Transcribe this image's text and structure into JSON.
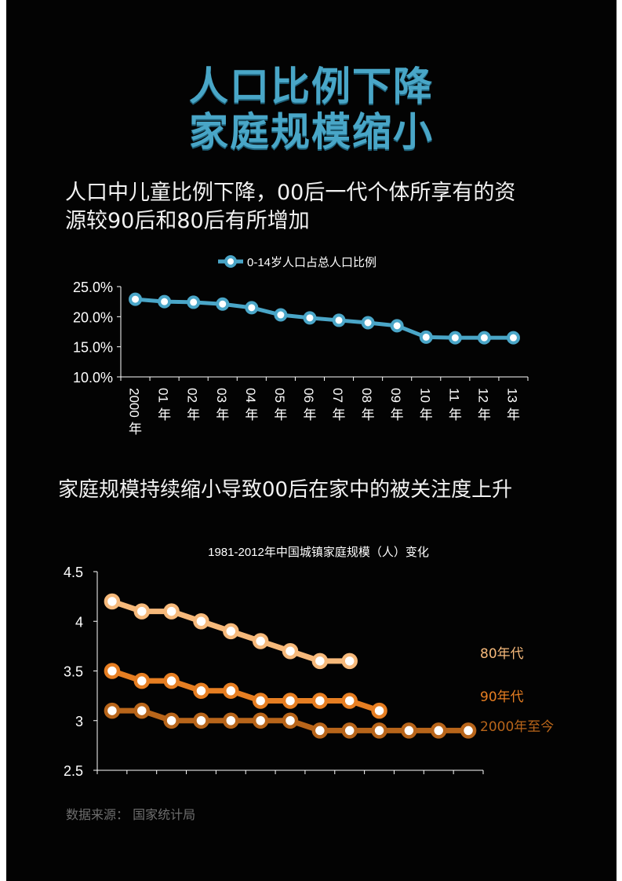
{
  "title": {
    "line1": "人口比例下降",
    "line2": "家庭规模缩小"
  },
  "section1": {
    "heading_line1": "人口中儿童比例下降，00后一代个体所享有的资",
    "heading_line2": "源较90后和80后有所增加"
  },
  "section2": {
    "heading": "家庭规模持续缩小导致00后在家中的被关注度上升"
  },
  "source": "数据来源：  国家统计局",
  "colors": {
    "title": "#49a6c7",
    "line1": "#4aa6c8",
    "s80": "#f6b97b",
    "s90": "#e67e22",
    "s2000": "#b8651a"
  },
  "chart_data": [
    {
      "type": "line",
      "legend": "0-14岁人口占总人口比例",
      "categories": [
        {
          "top": "2000",
          "bottom": "年"
        },
        {
          "top": "01",
          "bottom": "年"
        },
        {
          "top": "02",
          "bottom": "年"
        },
        {
          "top": "03",
          "bottom": "年"
        },
        {
          "top": "04",
          "bottom": "年"
        },
        {
          "top": "05",
          "bottom": "年"
        },
        {
          "top": "06",
          "bottom": "年"
        },
        {
          "top": "07",
          "bottom": "年"
        },
        {
          "top": "08",
          "bottom": "年"
        },
        {
          "top": "09",
          "bottom": "年"
        },
        {
          "top": "10",
          "bottom": "年"
        },
        {
          "top": "11",
          "bottom": "年"
        },
        {
          "top": "12",
          "bottom": "年"
        },
        {
          "top": "13",
          "bottom": "年"
        }
      ],
      "values": [
        22.9,
        22.5,
        22.4,
        22.1,
        21.5,
        20.3,
        19.8,
        19.4,
        19.0,
        18.5,
        16.6,
        16.5,
        16.5,
        16.5
      ],
      "ylim": [
        10,
        25
      ],
      "yticks": [
        "10.0%",
        "15.0%",
        "20.0%",
        "25.0%"
      ]
    },
    {
      "type": "line",
      "title": "1981-2012年中国城镇家庭规模（人）变化",
      "ylim": [
        2.5,
        4.5
      ],
      "yticks": [
        "2.5",
        "3",
        "3.5",
        "4",
        "4.5"
      ],
      "x_slots": 13,
      "series": [
        {
          "name": "80年代",
          "values": [
            4.2,
            4.1,
            4.1,
            4.0,
            3.9,
            3.8,
            3.7,
            3.6,
            3.6
          ]
        },
        {
          "name": "90年代",
          "values": [
            3.5,
            3.4,
            3.4,
            3.3,
            3.3,
            3.2,
            3.2,
            3.2,
            3.2,
            3.1
          ]
        },
        {
          "name": "2000年至今",
          "values": [
            3.1,
            3.1,
            3.0,
            3.0,
            3.0,
            3.0,
            3.0,
            2.9,
            2.9,
            2.9,
            2.9,
            2.9,
            2.9
          ]
        }
      ]
    }
  ]
}
